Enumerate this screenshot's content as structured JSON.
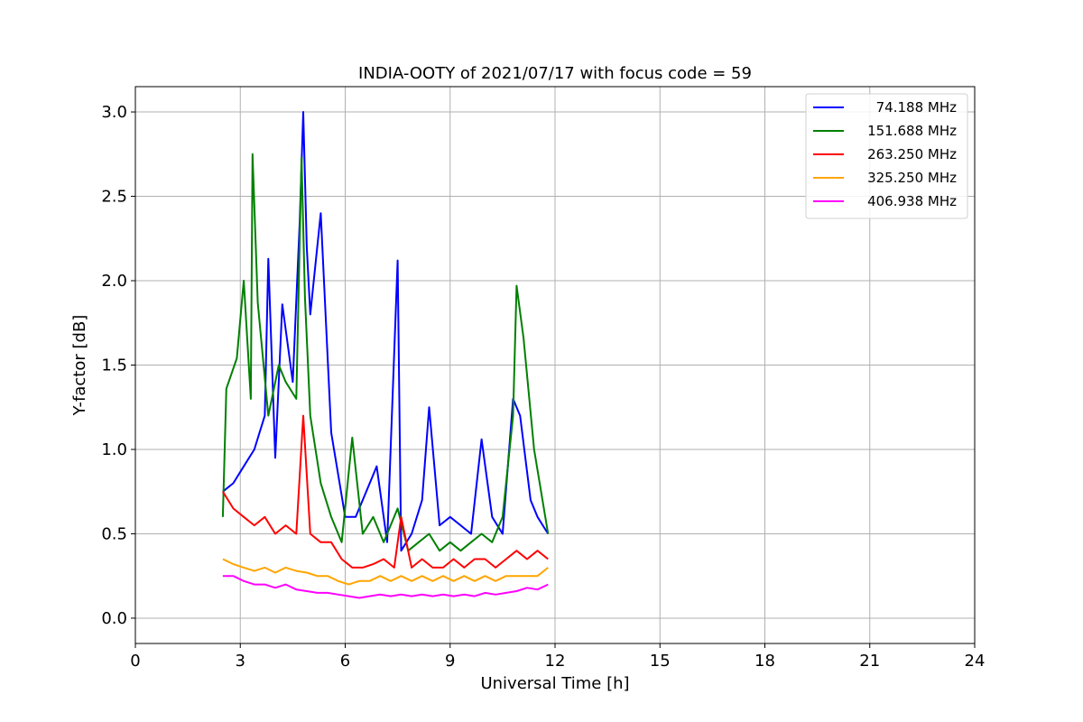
{
  "chart_data": {
    "type": "line",
    "title": "INDIA-OOTY of 2021/07/17 with focus code = 59",
    "xlabel": "Universal Time [h]",
    "ylabel": "Y-factor [dB]",
    "xlim": [
      0,
      24
    ],
    "ylim": [
      -0.15,
      3.15
    ],
    "xticks": [
      0,
      3,
      6,
      9,
      12,
      15,
      18,
      21,
      24
    ],
    "xtick_labels": [
      "0",
      "3",
      "6",
      "9",
      "12",
      "15",
      "18",
      "21",
      "24"
    ],
    "yticks": [
      0.0,
      0.5,
      1.0,
      1.5,
      2.0,
      2.5,
      3.0
    ],
    "ytick_labels": [
      "0.0",
      "0.5",
      "1.0",
      "1.5",
      "2.0",
      "2.5",
      "3.0"
    ],
    "grid": true,
    "legend_position": "top-right",
    "series": [
      {
        "name": "74.188 MHz",
        "color": "#0000ff",
        "x": [
          2.5,
          2.8,
          3.1,
          3.4,
          3.7,
          3.8,
          4.0,
          4.2,
          4.5,
          4.7,
          4.8,
          4.9,
          5.0,
          5.3,
          5.6,
          6.0,
          6.3,
          6.6,
          6.9,
          7.2,
          7.5,
          7.6,
          7.9,
          8.2,
          8.4,
          8.7,
          9.0,
          9.3,
          9.6,
          9.9,
          10.2,
          10.5,
          10.8,
          11.0,
          11.3,
          11.5,
          11.8
        ],
        "y": [
          0.75,
          0.8,
          0.9,
          1.0,
          1.2,
          2.13,
          0.95,
          1.86,
          1.4,
          2.35,
          3.0,
          2.2,
          1.8,
          2.4,
          1.1,
          0.6,
          0.6,
          0.75,
          0.9,
          0.45,
          2.12,
          0.4,
          0.5,
          0.7,
          1.25,
          0.55,
          0.6,
          0.55,
          0.5,
          1.06,
          0.6,
          0.5,
          1.3,
          1.2,
          0.7,
          0.6,
          0.5
        ]
      },
      {
        "name": "151.688 MHz",
        "color": "#008000",
        "x": [
          2.5,
          2.6,
          2.9,
          3.1,
          3.3,
          3.35,
          3.5,
          3.8,
          4.1,
          4.3,
          4.6,
          4.75,
          4.85,
          5.0,
          5.3,
          5.6,
          5.9,
          6.2,
          6.5,
          6.8,
          7.1,
          7.5,
          7.8,
          8.1,
          8.4,
          8.7,
          9.0,
          9.3,
          9.6,
          9.9,
          10.2,
          10.5,
          10.8,
          10.9,
          11.1,
          11.4,
          11.8
        ],
        "y": [
          0.6,
          1.36,
          1.54,
          2.0,
          1.3,
          2.75,
          1.87,
          1.2,
          1.5,
          1.4,
          1.3,
          2.73,
          1.9,
          1.2,
          0.8,
          0.6,
          0.45,
          1.07,
          0.5,
          0.6,
          0.45,
          0.65,
          0.4,
          0.45,
          0.5,
          0.4,
          0.45,
          0.4,
          0.45,
          0.5,
          0.45,
          0.6,
          1.2,
          1.97,
          1.66,
          1.0,
          0.5
        ]
      },
      {
        "name": "263.250 MHz",
        "color": "#ff0000",
        "x": [
          2.5,
          2.8,
          3.1,
          3.4,
          3.7,
          4.0,
          4.3,
          4.6,
          4.8,
          5.0,
          5.3,
          5.6,
          5.9,
          6.2,
          6.5,
          6.8,
          7.1,
          7.4,
          7.6,
          7.9,
          8.2,
          8.5,
          8.8,
          9.1,
          9.4,
          9.7,
          10.0,
          10.3,
          10.6,
          10.9,
          11.2,
          11.5,
          11.8
        ],
        "y": [
          0.75,
          0.65,
          0.6,
          0.55,
          0.6,
          0.5,
          0.55,
          0.5,
          1.2,
          0.5,
          0.45,
          0.45,
          0.35,
          0.3,
          0.3,
          0.32,
          0.35,
          0.3,
          0.6,
          0.3,
          0.35,
          0.3,
          0.3,
          0.35,
          0.3,
          0.35,
          0.35,
          0.3,
          0.35,
          0.4,
          0.35,
          0.4,
          0.35
        ]
      },
      {
        "name": "325.250 MHz",
        "color": "#ffa500",
        "x": [
          2.5,
          2.8,
          3.1,
          3.4,
          3.7,
          4.0,
          4.3,
          4.6,
          4.9,
          5.2,
          5.5,
          5.8,
          6.1,
          6.4,
          6.7,
          7.0,
          7.3,
          7.6,
          7.9,
          8.2,
          8.5,
          8.8,
          9.1,
          9.4,
          9.7,
          10.0,
          10.3,
          10.6,
          10.9,
          11.2,
          11.5,
          11.8
        ],
        "y": [
          0.35,
          0.32,
          0.3,
          0.28,
          0.3,
          0.27,
          0.3,
          0.28,
          0.27,
          0.25,
          0.25,
          0.22,
          0.2,
          0.22,
          0.22,
          0.25,
          0.22,
          0.25,
          0.22,
          0.25,
          0.22,
          0.25,
          0.22,
          0.25,
          0.22,
          0.25,
          0.22,
          0.25,
          0.25,
          0.25,
          0.25,
          0.3
        ]
      },
      {
        "name": "406.938 MHz",
        "color": "#ff00ff",
        "x": [
          2.5,
          2.8,
          3.1,
          3.4,
          3.7,
          4.0,
          4.3,
          4.6,
          4.9,
          5.2,
          5.5,
          5.8,
          6.1,
          6.4,
          6.7,
          7.0,
          7.3,
          7.6,
          7.9,
          8.2,
          8.5,
          8.8,
          9.1,
          9.4,
          9.7,
          10.0,
          10.3,
          10.6,
          10.9,
          11.2,
          11.5,
          11.8
        ],
        "y": [
          0.25,
          0.25,
          0.22,
          0.2,
          0.2,
          0.18,
          0.2,
          0.17,
          0.16,
          0.15,
          0.15,
          0.14,
          0.13,
          0.12,
          0.13,
          0.14,
          0.13,
          0.14,
          0.13,
          0.14,
          0.13,
          0.14,
          0.13,
          0.14,
          0.13,
          0.15,
          0.14,
          0.15,
          0.16,
          0.18,
          0.17,
          0.2
        ]
      }
    ]
  }
}
